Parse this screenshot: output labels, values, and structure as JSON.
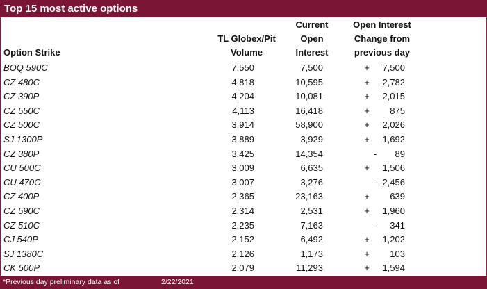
{
  "title": "Top 15 most active options",
  "headers": {
    "strike": "Option Strike",
    "volume": [
      "TL Globex/Pit",
      "Volume"
    ],
    "open_interest": [
      "Current",
      "Open",
      "Interest"
    ],
    "change": [
      "Open Interest",
      "Change from",
      "previous day"
    ]
  },
  "rows": [
    {
      "strike": "BOQ 590C",
      "volume": "7,550",
      "oi": "7,500",
      "sign": "+",
      "change": "7,500"
    },
    {
      "strike": "CZ 480C",
      "volume": "4,818",
      "oi": "10,595",
      "sign": "+",
      "change": "2,782"
    },
    {
      "strike": "CZ 390P",
      "volume": "4,204",
      "oi": "10,081",
      "sign": "+",
      "change": "2,015"
    },
    {
      "strike": "CZ 550C",
      "volume": "4,113",
      "oi": "16,418",
      "sign": "+",
      "change": "875"
    },
    {
      "strike": "CZ 500C",
      "volume": "3,914",
      "oi": "58,900",
      "sign": "+",
      "change": "2,026"
    },
    {
      "strike": "SJ 1300P",
      "volume": "3,889",
      "oi": "3,929",
      "sign": "+",
      "change": "1,692"
    },
    {
      "strike": "CZ 380P",
      "volume": "3,425",
      "oi": "14,354",
      "sign": "-",
      "change": "89"
    },
    {
      "strike": "CU 500C",
      "volume": "3,009",
      "oi": "6,635",
      "sign": "+",
      "change": "1,506"
    },
    {
      "strike": "CU 470C",
      "volume": "3,007",
      "oi": "3,276",
      "sign": "-",
      "change": "2,456"
    },
    {
      "strike": "CZ 400P",
      "volume": "2,365",
      "oi": "23,163",
      "sign": "+",
      "change": "639"
    },
    {
      "strike": "CZ 590C",
      "volume": "2,314",
      "oi": "2,531",
      "sign": "+",
      "change": "1,960"
    },
    {
      "strike": "CZ 510C",
      "volume": "2,235",
      "oi": "7,163",
      "sign": "-",
      "change": "341"
    },
    {
      "strike": "CJ 540P",
      "volume": "2,152",
      "oi": "6,492",
      "sign": "+",
      "change": "1,202"
    },
    {
      "strike": "SJ 1380C",
      "volume": "2,126",
      "oi": "1,173",
      "sign": "+",
      "change": "103"
    },
    {
      "strike": "CK 500P",
      "volume": "2,079",
      "oi": "11,293",
      "sign": "+",
      "change": "1,594"
    }
  ],
  "footer": {
    "note": "*Previous day preliminary data as of",
    "date": "2/22/2021"
  },
  "colors": {
    "accent": "#7b1535"
  }
}
